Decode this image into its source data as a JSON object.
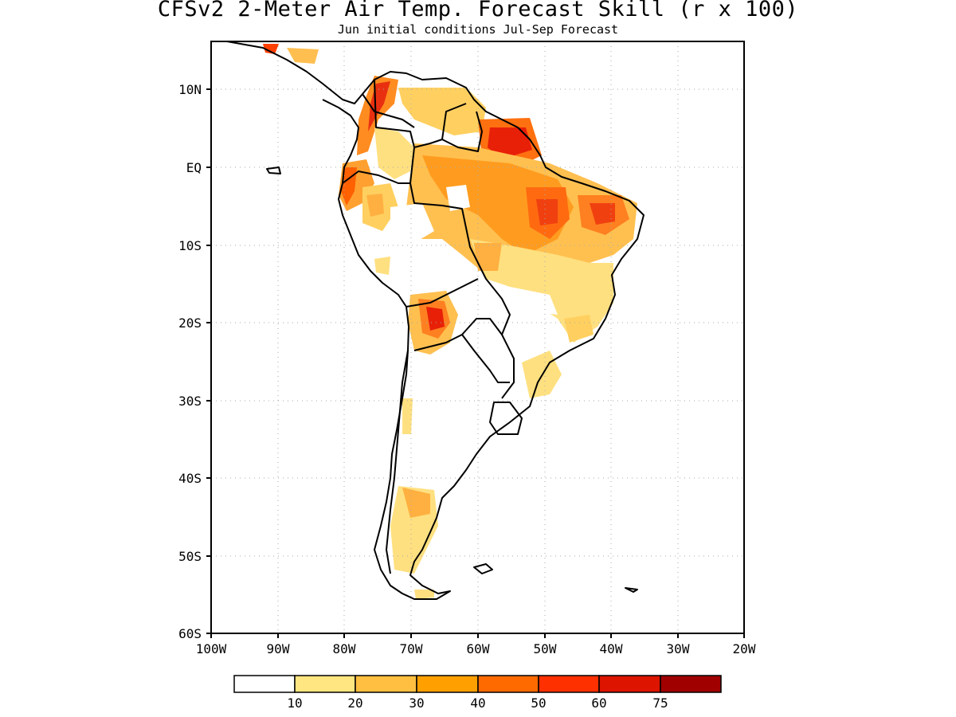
{
  "title": "CFSv2 2-Meter Air Temp. Forecast Skill (r x 100)",
  "subtitle": "Jun initial conditions  Jul-Sep Forecast",
  "map": {
    "lon_range": [
      -100,
      -20
    ],
    "lat_range": [
      -60,
      15
    ],
    "lon_ticks": [
      "100W",
      "90W",
      "80W",
      "70W",
      "60W",
      "50W",
      "40W",
      "30W",
      "20W"
    ],
    "lat_ticks": [
      "10N",
      "EQ",
      "10S",
      "20S",
      "30S",
      "40S",
      "50S",
      "60S"
    ],
    "grid": true
  },
  "legend": {
    "colors": [
      "#ffffff",
      "#ffe680",
      "#ffbf40",
      "#ffa000",
      "#ff6a00",
      "#ff3000",
      "#dc1400",
      "#a00000"
    ],
    "labels": [
      "10",
      "20",
      "30",
      "40",
      "50",
      "60",
      "75"
    ]
  }
}
